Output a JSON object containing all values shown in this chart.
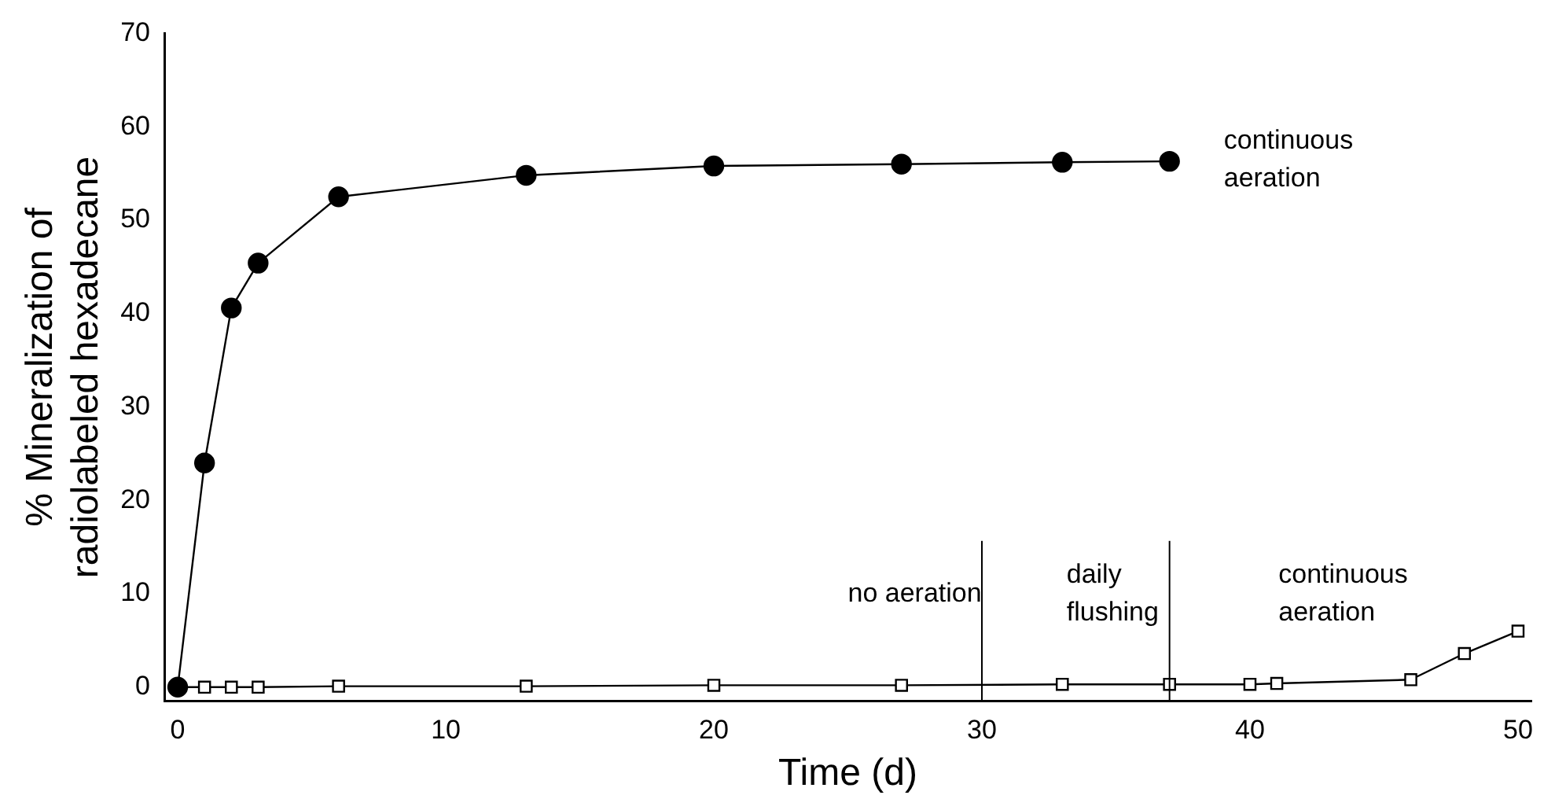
{
  "chart_data": {
    "type": "line",
    "xlabel": "Time (d)",
    "ylabel": "% Mineralization of\nradiolabeled hexadecane",
    "xlim": [
      -0.5,
      50.5
    ],
    "ylim": [
      -1.5,
      70
    ],
    "xticks": [
      0,
      10,
      20,
      30,
      40,
      50
    ],
    "yticks": [
      0,
      10,
      20,
      30,
      40,
      50,
      60,
      70
    ],
    "grid": false,
    "legend": false,
    "line_style": "solid",
    "series": [
      {
        "color": "#000000",
        "marker": "circle",
        "x": [
          0,
          1,
          2,
          3,
          6,
          13,
          20,
          27,
          33,
          37
        ],
        "values": [
          0,
          24,
          40.6,
          45.4,
          52.5,
          54.8,
          55.8,
          56,
          56.2,
          56.3
        ]
      },
      {
        "color": "#000000",
        "marker": "square",
        "x": [
          0,
          1,
          2,
          3,
          6,
          13,
          20,
          27,
          33,
          37,
          40,
          41,
          46,
          48,
          50
        ],
        "values": [
          0,
          0,
          0,
          0,
          0.1,
          0.1,
          0.2,
          0.2,
          0.3,
          0.3,
          0.3,
          0.4,
          0.8,
          3.6,
          6
        ]
      }
    ],
    "ref_lines": [
      {
        "axis": "x",
        "value": 30
      },
      {
        "axis": "x",
        "value": 37
      }
    ],
    "annotations": [
      "continuous\naeration",
      "no aeration",
      "daily\nflushing",
      "continuous\naeration"
    ]
  }
}
